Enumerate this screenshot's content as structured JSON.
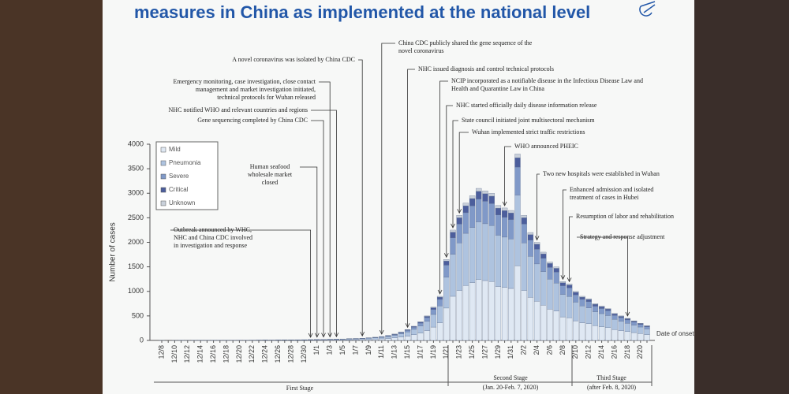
{
  "chart_data": {
    "type": "stacked_bar",
    "title": "measures in China as implemented at the national level",
    "y_label": "Number of cases",
    "x_label": "Date of onset",
    "categories": [
      "12/8",
      null,
      "12/10",
      null,
      "12/12",
      null,
      "12/14",
      null,
      "12/16",
      null,
      "12/18",
      null,
      "12/20",
      null,
      "12/22",
      null,
      "12/24",
      null,
      "12/26",
      null,
      "12/28",
      null,
      "12/30",
      null,
      "1/1",
      null,
      "1/3",
      null,
      "1/5",
      null,
      "1/7",
      null,
      "1/9",
      null,
      "1/11",
      null,
      "1/13",
      null,
      "1/15",
      null,
      "1/17",
      null,
      "1/19",
      null,
      "1/21",
      null,
      "1/23",
      null,
      "1/25",
      null,
      "1/27",
      null,
      "1/29",
      null,
      "1/31",
      null,
      "2/2",
      null,
      "2/4",
      null,
      "2/6",
      null,
      "2/8",
      null,
      "2/10",
      null,
      "2/12",
      null,
      "2/14",
      null,
      "2/16",
      null,
      "2/18",
      null,
      "2/20",
      null
    ],
    "series": [
      {
        "name": "Mild",
        "color": "#dfe8f3",
        "values": [
          1,
          0,
          0,
          1,
          0,
          1,
          1,
          1,
          1,
          2,
          1,
          2,
          2,
          2,
          3,
          3,
          4,
          3,
          4,
          5,
          4,
          6,
          6,
          7,
          8,
          9,
          10,
          11,
          12,
          14,
          16,
          18,
          22,
          26,
          32,
          40,
          52,
          68,
          88,
          116,
          152,
          200,
          272,
          360,
          660,
          900,
          1020,
          1120,
          1180,
          1240,
          1220,
          1200,
          1100,
          1080,
          1060,
          1520,
          1020,
          880,
          800,
          720,
          640,
          600,
          480,
          460,
          400,
          360,
          340,
          300,
          280,
          260,
          220,
          200,
          180,
          160,
          140,
          120
        ]
      },
      {
        "name": "Pneumonia",
        "color": "#aec3df",
        "values": [
          0,
          0,
          1,
          1,
          1,
          1,
          1,
          1,
          1,
          1,
          1,
          2,
          2,
          2,
          3,
          3,
          3,
          3,
          4,
          5,
          4,
          5,
          6,
          6,
          8,
          8,
          10,
          11,
          11,
          13,
          15,
          17,
          21,
          25,
          30,
          38,
          49,
          65,
          84,
          110,
          144,
          190,
          258,
          342,
          627,
          855,
          969,
          1064,
          1121,
          1178,
          1159,
          1140,
          1045,
          1026,
          1007,
          1444,
          969,
          836,
          760,
          684,
          608,
          570,
          456,
          437,
          380,
          342,
          323,
          285,
          266,
          247,
          209,
          190,
          171,
          152,
          133,
          114
        ]
      },
      {
        "name": "Severe",
        "color": "#8099c8",
        "values": [
          0,
          0,
          0,
          0,
          0,
          0,
          1,
          0,
          1,
          1,
          1,
          1,
          1,
          1,
          1,
          1,
          1,
          1,
          1,
          2,
          2,
          2,
          2,
          3,
          3,
          3,
          4,
          4,
          5,
          5,
          6,
          7,
          8,
          10,
          12,
          15,
          20,
          26,
          33,
          44,
          57,
          75,
          102,
          135,
          248,
          338,
          383,
          420,
          443,
          465,
          458,
          450,
          413,
          405,
          398,
          570,
          383,
          330,
          300,
          270,
          240,
          225,
          180,
          173,
          150,
          135,
          128,
          113,
          105,
          98,
          83,
          75,
          68,
          60,
          53,
          45
        ]
      },
      {
        "name": "Critical",
        "color": "#4c5e9c",
        "values": [
          0,
          0,
          0,
          0,
          0,
          0,
          0,
          0,
          0,
          0,
          0,
          0,
          1,
          0,
          0,
          1,
          1,
          1,
          1,
          0,
          1,
          1,
          1,
          1,
          1,
          1,
          1,
          1,
          1,
          2,
          2,
          2,
          3,
          3,
          4,
          5,
          7,
          9,
          11,
          15,
          19,
          25,
          34,
          45,
          83,
          113,
          128,
          140,
          148,
          155,
          153,
          150,
          138,
          135,
          133,
          190,
          128,
          110,
          100,
          90,
          80,
          75,
          60,
          58,
          50,
          45,
          43,
          38,
          35,
          33,
          28,
          25,
          23,
          20,
          18,
          15
        ]
      },
      {
        "name": "Unknown",
        "color": "#c9d0da",
        "values": [
          0,
          0,
          0,
          0,
          0,
          0,
          0,
          0,
          0,
          0,
          0,
          0,
          0,
          0,
          0,
          0,
          0,
          0,
          0,
          0,
          0,
          0,
          0,
          0,
          0,
          1,
          0,
          1,
          1,
          1,
          1,
          1,
          1,
          1,
          2,
          2,
          2,
          2,
          4,
          5,
          8,
          10,
          14,
          18,
          32,
          44,
          50,
          56,
          58,
          62,
          60,
          60,
          54,
          54,
          52,
          76,
          50,
          44,
          40,
          36,
          32,
          30,
          24,
          22,
          20,
          18,
          16,
          14,
          14,
          12,
          10,
          10,
          8,
          8,
          6,
          6
        ]
      }
    ],
    "ylim": [
      0,
      4000
    ],
    "yticks": [
      0,
      500,
      1000,
      1500,
      2000,
      2500,
      3000,
      3500,
      4000
    ],
    "annotations": [
      [
        "China CDC publicly shared the gene sequence of the",
        "novel coronavirus"
      ],
      [
        "A novel coronavirus was isolated by China CDC"
      ],
      [
        "Emergency monitoring, case investigation, close contact",
        "management and market investigation initiated,",
        "technical protocols for Wuhan released"
      ],
      [
        "NHC notified WHO and relevant countries and regions"
      ],
      [
        "Gene sequencing completed by China CDC"
      ],
      [
        "Human seafood",
        "wholesale market",
        "closed"
      ],
      [
        "Outbreak announced by WHC,",
        "NHC and China CDC involved",
        "in investigation and response"
      ],
      [
        "NHC issued diagnosis and control technical protocols"
      ],
      [
        "NCIP incorporated as a notifiable disease in the Infectious Disease Law and",
        "Health and Quarantine Law in China"
      ],
      [
        "NHC started officially daily disease information release"
      ],
      [
        "State council initiated joint multisectoral mechanism"
      ],
      [
        "Wuhan implemented strict traffic restrictions"
      ],
      [
        "WHO announced PHEIC"
      ],
      [
        "Two new hospitals were established in Wuhan"
      ],
      [
        "Enhanced admission and isolated",
        "treatment of cases in Hubei"
      ],
      [
        "Resumption of labor and rehabilitation"
      ],
      [
        "Strategy and response adjustment"
      ]
    ],
    "stages": [
      {
        "name": "First Stage"
      },
      {
        "name": "Second Stage",
        "period": "(Jan. 20-Feb. 7, 2020)"
      },
      {
        "name": "Third Stage",
        "period": "(after Feb. 8, 2020)"
      }
    ]
  }
}
